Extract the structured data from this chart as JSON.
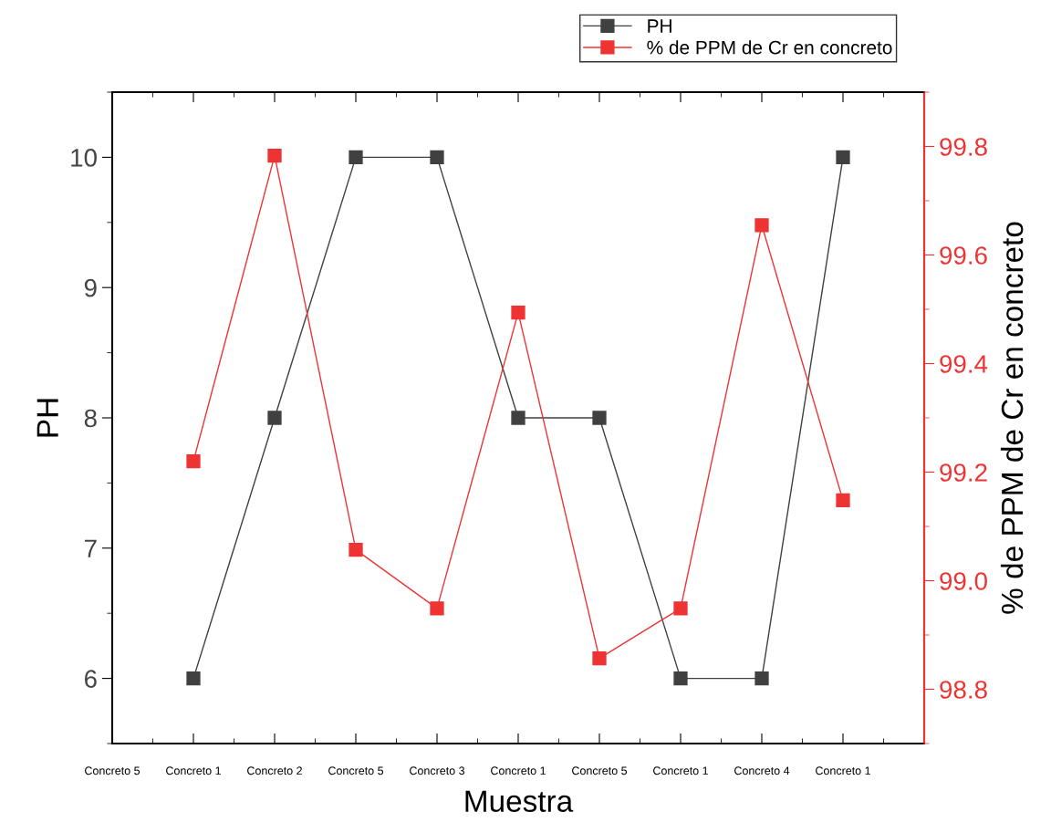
{
  "chart_data": {
    "type": "line",
    "xlabel": "Muestra",
    "ylabel": "PH",
    "y2label": "% de PPM de Cr en concreto",
    "categories": [
      "Concreto 5",
      "Concreto 1",
      "Concreto 2",
      "Concreto 5",
      "Concreto 3",
      "Concreto 1",
      "Concreto 5",
      "Concreto 1",
      "Concreto 4",
      "Concreto 1",
      null
    ],
    "series": [
      {
        "name": "PH",
        "color": "#404040",
        "values": [
          null,
          6,
          8,
          10,
          10,
          8,
          8,
          6,
          6,
          10,
          null
        ]
      },
      {
        "name": "% de PPM de Cr en concreto",
        "color": "#ee3333",
        "axis": "y2",
        "values": [
          null,
          99.22,
          99.783,
          99.057,
          98.949,
          99.494,
          98.857,
          98.949,
          99.655,
          99.148,
          null
        ]
      }
    ],
    "ylim": [
      5.5,
      10.5
    ],
    "yticks": [
      6,
      7,
      8,
      9,
      10
    ],
    "y2lim": [
      98.7,
      99.9
    ],
    "y2ticks": [
      {
        "value": 98.8,
        "label": "98.8"
      },
      {
        "value": 99.0,
        "label": "99.0"
      },
      {
        "value": 99.2,
        "label": "99.2"
      },
      {
        "value": 99.4,
        "label": "99.4"
      },
      {
        "value": 99.6,
        "label": "99.6"
      },
      {
        "value": 99.8,
        "label": "99.8"
      }
    ],
    "marker": "square",
    "line_style": "solid",
    "grid": false,
    "legend": "top right"
  }
}
